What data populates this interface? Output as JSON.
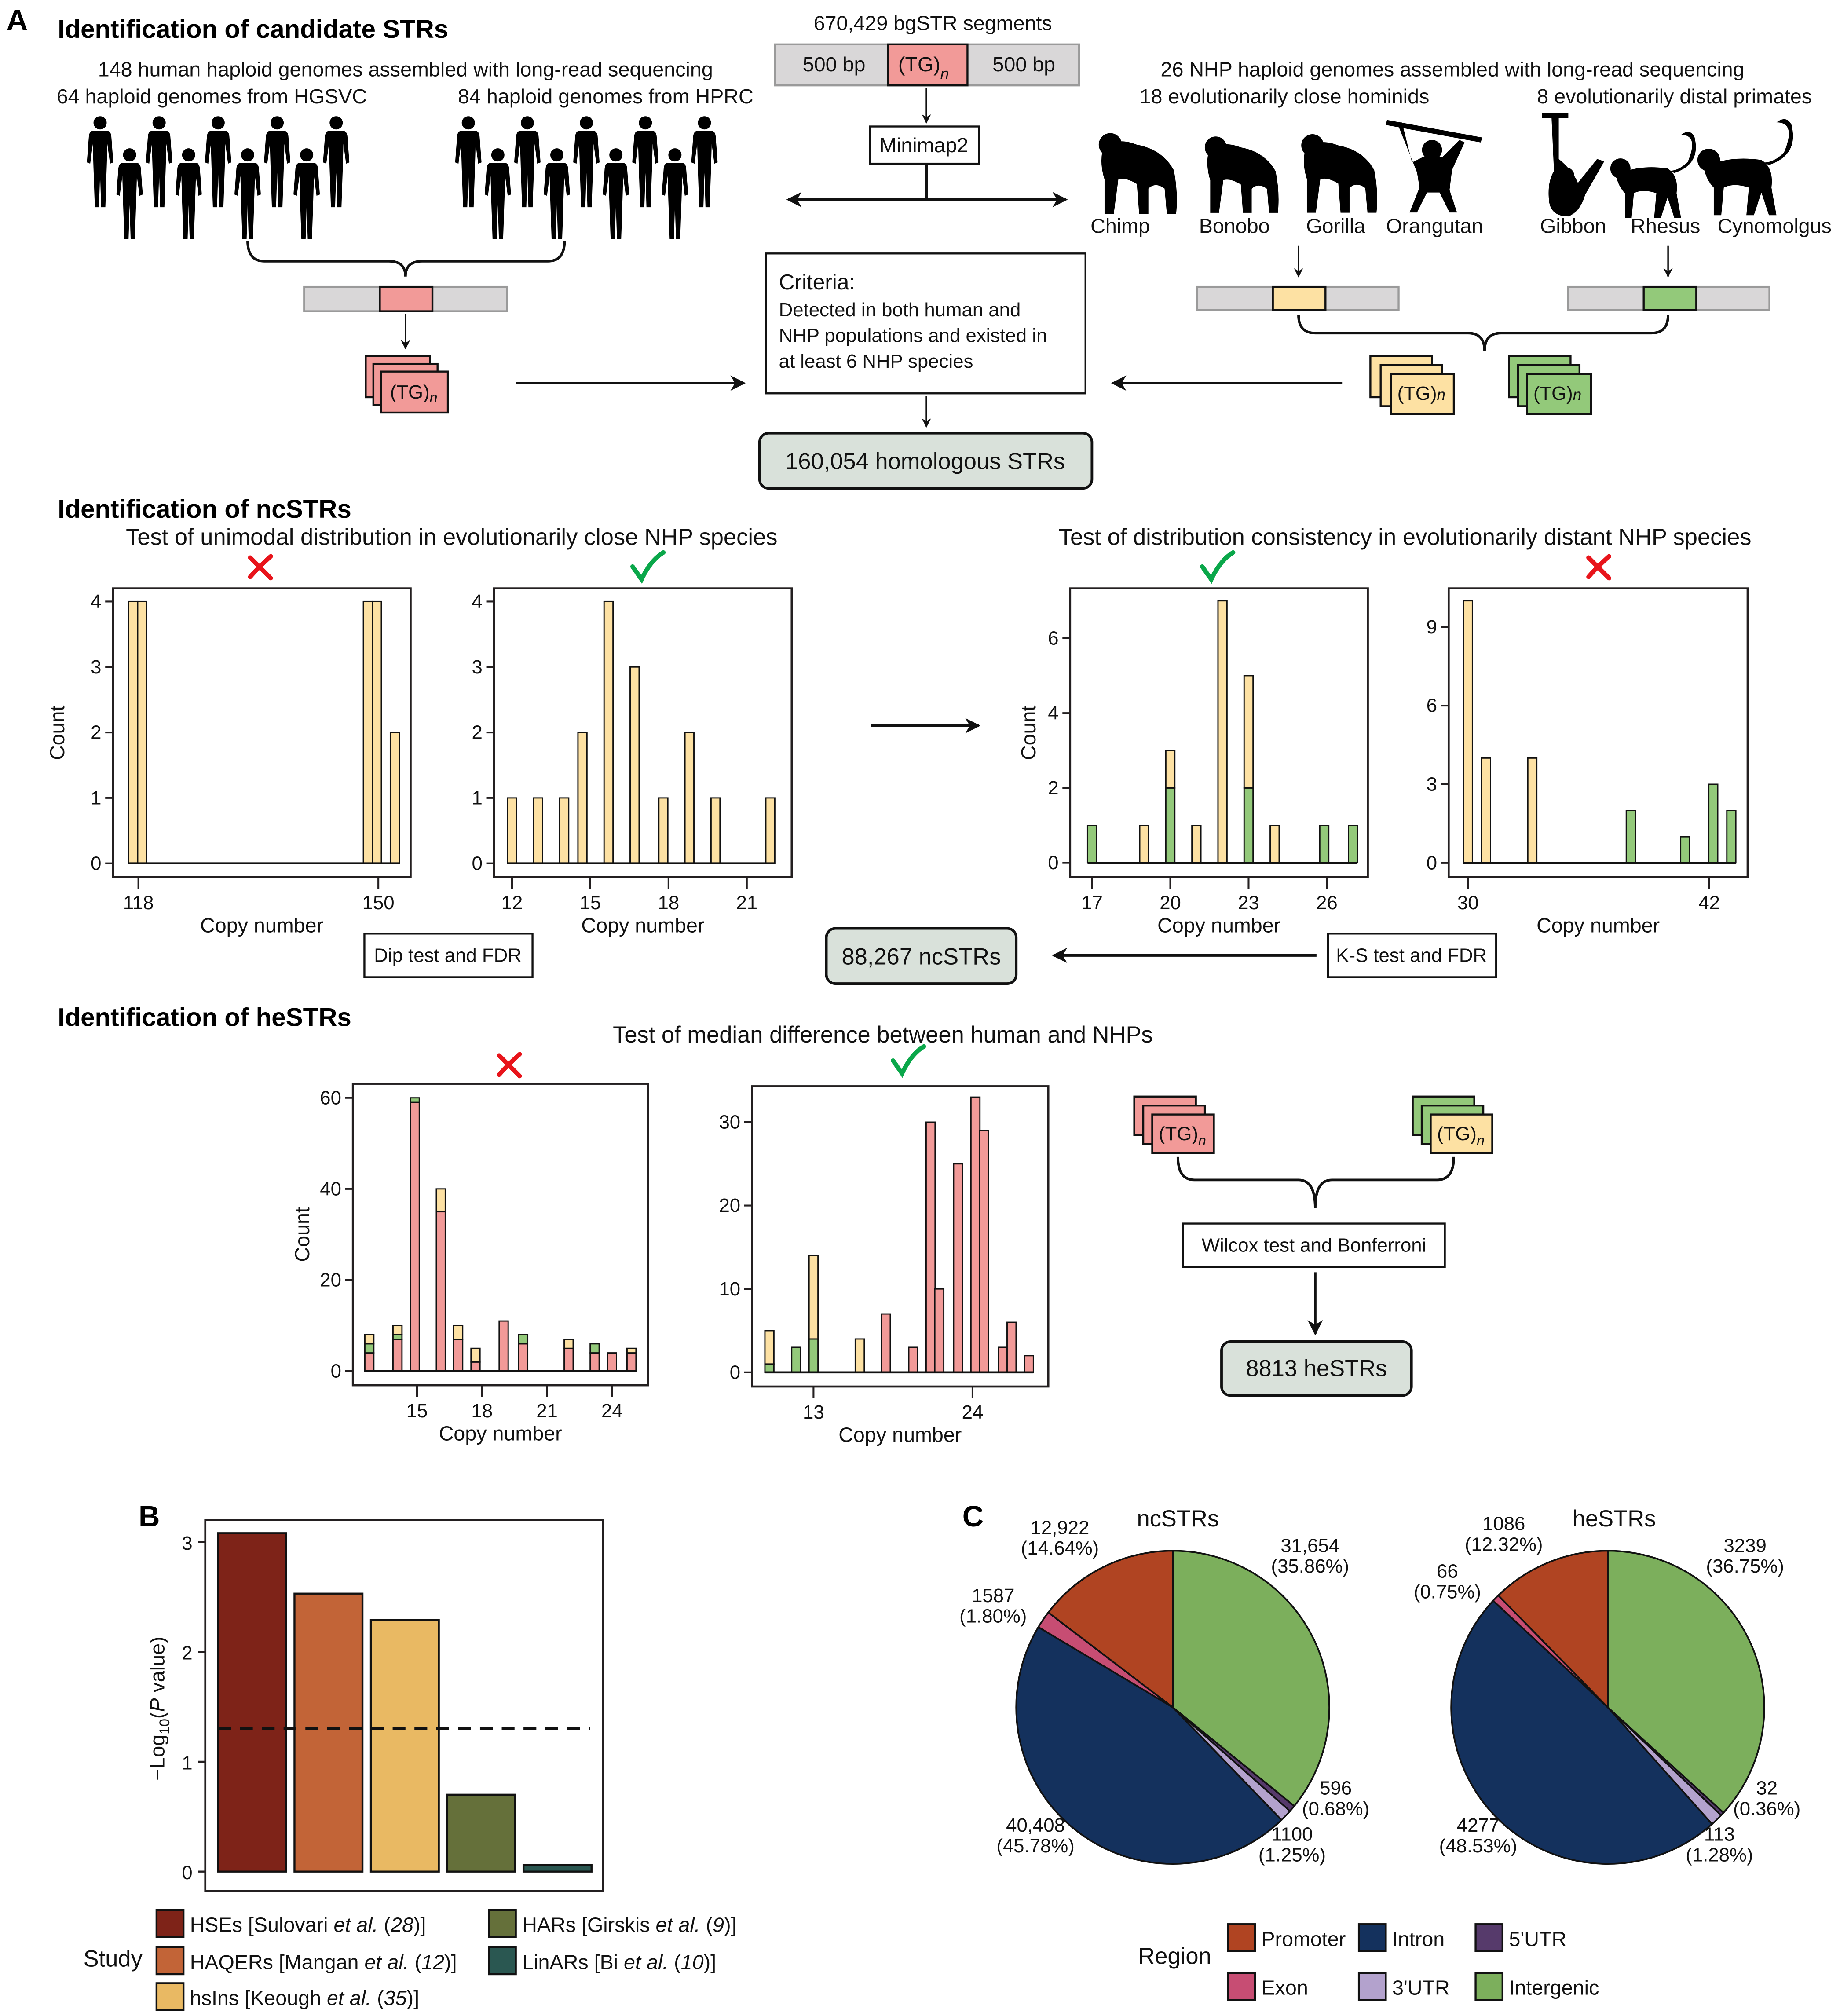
{
  "panel_letters": {
    "a": "A",
    "b": "B",
    "c": "C"
  },
  "colors": {
    "human": "#f29a98",
    "close": "#fde1a3",
    "distal": "#93c97a",
    "result_box": "#d9e1da",
    "flank": "#d9d7d8",
    "fail": "#e8141b",
    "pass": "#0aa74a"
  },
  "section_a": {
    "title": "Identification of candidate STRs",
    "human_header": "148 human haploid genomes assembled with long-read sequencing",
    "hgsvc": "64 haploid genomes from HGSVC",
    "hprc": "84 haploid genomes from HPRC",
    "bgstr": "670,429 bgSTR segments",
    "flank_left": "500 bp",
    "flank_right": "500 bp",
    "motif": "(TG)",
    "motif_sub": "n",
    "minimap": "Minimap2",
    "nhp_header": "26 NHP haploid genomes assembled with long-read sequencing",
    "close_header": "18 evolutionarily close hominids",
    "distal_header": "8 evolutionarily distal primates",
    "species": [
      "Chimp",
      "Bonobo",
      "Gorilla",
      "Orangutan",
      "Gibbon",
      "Rhesus",
      "Cynomolgus"
    ],
    "criteria_title": "Criteria:",
    "criteria_lines": [
      "Detected in both human and",
      "NHP populations and existed in",
      "at least 6 NHP species"
    ],
    "result": "160,054 homologous STRs"
  },
  "section_nc": {
    "title": "Identification of ncSTRs",
    "test_close": "Test of unimodal distribution in evolutionarily close NHP species",
    "test_distal": "Test of distribution consistency in evolutionarily distant NHP species",
    "dip": "Dip test and FDR",
    "ks": "K-S test and FDR",
    "result": "88,267 ncSTRs",
    "marks": [
      "cross-icon",
      "check-icon",
      "check-icon",
      "cross-icon"
    ]
  },
  "section_he": {
    "title": "Identification of heSTRs",
    "test": "Test of median difference between human and NHPs",
    "wilcox": "Wilcox test and Bonferroni",
    "result": "8813 heSTRs",
    "marks": [
      "cross-icon",
      "check-icon"
    ]
  },
  "chart_data": [
    {
      "id": "h1",
      "type": "bar",
      "stacked": true,
      "xlabel": "Copy number",
      "ylabel": "Count",
      "xlim": [
        114.6,
        154.3
      ],
      "ylim": [
        -0.21,
        4.2
      ],
      "xticks": [
        118,
        150
      ],
      "yticks": [
        0,
        1,
        2,
        3,
        4
      ],
      "bars": [
        {
          "x": 117.3,
          "close": 4
        },
        {
          "x": 118.5,
          "close": 4
        },
        {
          "x": 148.6,
          "close": 4
        },
        {
          "x": 149.8,
          "close": 4
        },
        {
          "x": 152.2,
          "close": 2
        }
      ]
    },
    {
      "id": "h2",
      "type": "bar",
      "stacked": true,
      "xlabel": "Copy number",
      "ylabel": "",
      "xlim": [
        11.31,
        22.72
      ],
      "ylim": [
        -0.21,
        4.2
      ],
      "xticks": [
        12,
        15,
        18,
        21
      ],
      "yticks": [
        0,
        1,
        2,
        3,
        4
      ],
      "bars": [
        {
          "x": 12,
          "close": 1
        },
        {
          "x": 13,
          "close": 1
        },
        {
          "x": 14,
          "close": 1
        },
        {
          "x": 14.7,
          "close": 2
        },
        {
          "x": 15.7,
          "close": 4
        },
        {
          "x": 16.7,
          "close": 3
        },
        {
          "x": 17.8,
          "close": 1
        },
        {
          "x": 18.8,
          "close": 2
        },
        {
          "x": 19.8,
          "close": 1
        },
        {
          "x": 21.9,
          "close": 1
        }
      ]
    },
    {
      "id": "h3",
      "type": "bar",
      "stacked": true,
      "xlabel": "Copy number",
      "ylabel": "Count",
      "xlim": [
        16.16,
        27.57
      ],
      "ylim": [
        -0.38,
        7.33
      ],
      "xticks": [
        17,
        20,
        23,
        26
      ],
      "yticks": [
        0,
        2,
        4,
        6
      ],
      "bars": [
        {
          "x": 17,
          "distal": 1
        },
        {
          "x": 19,
          "close": 1
        },
        {
          "x": 20,
          "distal": 2,
          "close": 1
        },
        {
          "x": 21,
          "close": 1
        },
        {
          "x": 22,
          "close": 7
        },
        {
          "x": 23,
          "distal": 2,
          "close": 3
        },
        {
          "x": 24,
          "close": 1
        },
        {
          "x": 25.9,
          "distal": 1
        },
        {
          "x": 27,
          "distal": 1
        }
      ]
    },
    {
      "id": "h4",
      "type": "bar",
      "stacked": true,
      "xlabel": "Copy number",
      "ylabel": "",
      "xlim": [
        29.04,
        43.91
      ],
      "ylim": [
        -0.54,
        10.47
      ],
      "xticks": [
        30,
        42
      ],
      "yticks": [
        0,
        3,
        6,
        9
      ],
      "bars": [
        {
          "x": 30.0,
          "close": 10
        },
        {
          "x": 30.9,
          "close": 4
        },
        {
          "x": 33.2,
          "close": 4
        },
        {
          "x": 38.1,
          "distal": 2
        },
        {
          "x": 40.8,
          "distal": 1
        },
        {
          "x": 42.2,
          "distal": 3
        },
        {
          "x": 43.1,
          "distal": 2
        }
      ]
    },
    {
      "id": "h5",
      "type": "bar",
      "stacked": true,
      "xlabel": "Copy number",
      "ylabel": "Count",
      "xlim": [
        12.04,
        25.66
      ],
      "ylim": [
        -3.1,
        63.1
      ],
      "xticks": [
        15,
        18,
        21,
        24
      ],
      "yticks": [
        0,
        20,
        40,
        60
      ],
      "bars": [
        {
          "x": 12.8,
          "human": 4,
          "distal": 2,
          "close": 2
        },
        {
          "x": 14.1,
          "human": 7,
          "distal": 1,
          "close": 2
        },
        {
          "x": 14.9,
          "human": 59,
          "distal": 1
        },
        {
          "x": 16.1,
          "human": 35,
          "close": 5
        },
        {
          "x": 16.9,
          "human": 7,
          "close": 3
        },
        {
          "x": 17.7,
          "human": 2,
          "close": 3
        },
        {
          "x": 19.0,
          "human": 11
        },
        {
          "x": 19.9,
          "human": 6,
          "distal": 2
        },
        {
          "x": 22.0,
          "human": 5,
          "close": 2
        },
        {
          "x": 23.2,
          "human": 4,
          "distal": 2
        },
        {
          "x": 24.0,
          "human": 4
        },
        {
          "x": 24.9,
          "human": 4,
          "close": 1
        }
      ]
    },
    {
      "id": "h6",
      "type": "bar",
      "stacked": true,
      "xlabel": "Copy number",
      "ylabel": "",
      "xlim": [
        8.74,
        29.24
      ],
      "ylim": [
        -1.7,
        34.3
      ],
      "xticks": [
        13,
        24
      ],
      "yticks": [
        0,
        10,
        20,
        30
      ],
      "bars": [
        {
          "x": 9.95,
          "distal": 1,
          "close": 4
        },
        {
          "x": 11.8,
          "distal": 3
        },
        {
          "x": 13.0,
          "distal": 4,
          "close": 10
        },
        {
          "x": 16.2,
          "close": 4
        },
        {
          "x": 18.0,
          "human": 7
        },
        {
          "x": 19.9,
          "human": 3
        },
        {
          "x": 21.1,
          "human": 30
        },
        {
          "x": 21.7,
          "human": 10
        },
        {
          "x": 23.0,
          "human": 25
        },
        {
          "x": 24.2,
          "human": 33
        },
        {
          "x": 24.8,
          "human": 29
        },
        {
          "x": 26.1,
          "human": 3
        },
        {
          "x": 26.7,
          "human": 6
        },
        {
          "x": 27.9,
          "human": 2
        }
      ]
    },
    {
      "id": "b",
      "type": "bar",
      "ylabel_prefix": "−Log",
      "ylabel_sub": "10",
      "ylabel_open": "(",
      "ylabel_italic": "P",
      "ylabel_rest": " value)",
      "ylim": [
        -0.175,
        3.2
      ],
      "yticks": [
        0,
        1,
        2,
        3
      ],
      "threshold": 1.3,
      "legend_title": "Study",
      "categories": [
        {
          "name": "HSEs",
          "author": "Sulovari",
          "ref": "28",
          "value": 3.08,
          "color": "#7e2318"
        },
        {
          "name": "HAQERs",
          "author": "Mangan",
          "ref": "12",
          "value": 2.53,
          "color": "#c26437"
        },
        {
          "name": "hsIns",
          "author": "Keough",
          "ref": "35",
          "value": 2.29,
          "color": "#e9b963"
        },
        {
          "name": "HARs",
          "author": "Girskis",
          "ref": "9",
          "value": 0.7,
          "color": "#65703a"
        },
        {
          "name": "LinARs",
          "author": "Bi",
          "ref": "10",
          "value": 0.06,
          "color": "#2a5751"
        }
      ],
      "etal": "et al."
    },
    {
      "id": "c",
      "type": "pie",
      "legend_title": "Region",
      "regions": [
        {
          "name": "Intergenic",
          "color": "#7caf5c"
        },
        {
          "name": "5'UTR",
          "color": "#563a6b"
        },
        {
          "name": "3'UTR",
          "color": "#b3a2cd"
        },
        {
          "name": "Intron",
          "color": "#14315d"
        },
        {
          "name": "Exon",
          "color": "#c74d73"
        },
        {
          "name": "Promoter",
          "color": "#b04422"
        }
      ],
      "legend_order": [
        "Promoter",
        "Intron",
        "5'UTR",
        "Exon",
        "3'UTR",
        "Intergenic"
      ],
      "pies": [
        {
          "title": "ncSTRs",
          "values": [
            31654,
            596,
            1100,
            40408,
            1587,
            12922
          ],
          "labels": [
            [
              "31,654",
              "(35.86%)"
            ],
            [
              "596",
              "(0.68%)"
            ],
            [
              "1100",
              "(1.25%)"
            ],
            [
              "40,408",
              "(45.78%)"
            ],
            [
              "1587",
              "(1.80%)"
            ],
            [
              "12,922",
              "(14.64%)"
            ]
          ]
        },
        {
          "title": "heSTRs",
          "values": [
            3239,
            32,
            113,
            4277,
            66,
            1086
          ],
          "labels": [
            [
              "3239",
              "(36.75%)"
            ],
            [
              "32",
              "(0.36%)"
            ],
            [
              "113",
              "(1.28%)"
            ],
            [
              "4277",
              "(48.53%)"
            ],
            [
              "66",
              "(0.75%)"
            ],
            [
              "1086",
              "(12.32%)"
            ]
          ]
        }
      ]
    }
  ]
}
